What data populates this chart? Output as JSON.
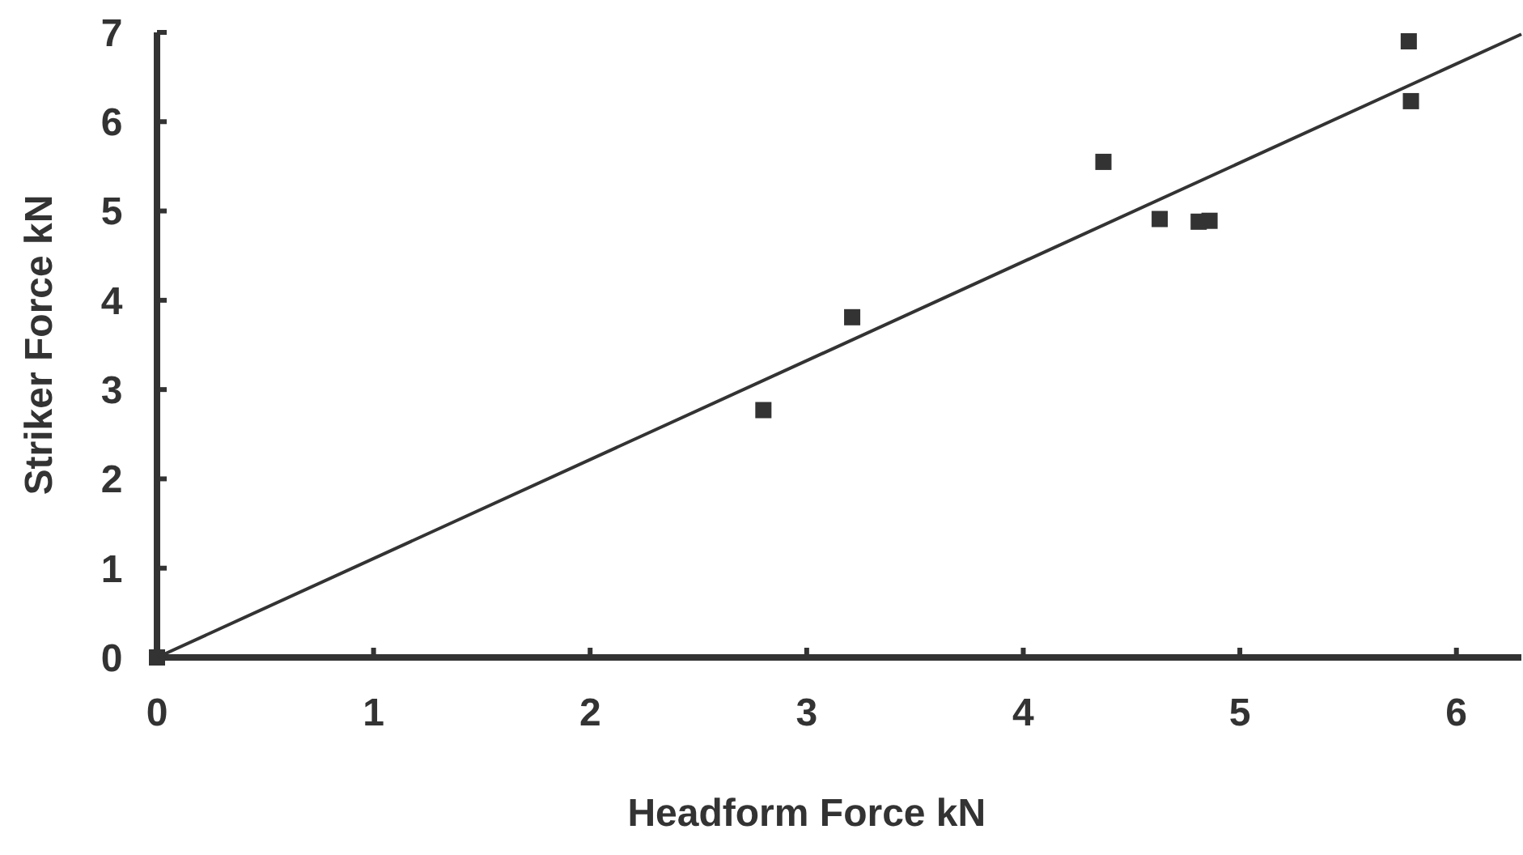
{
  "chart_data": {
    "type": "scatter",
    "xlabel": "Headform Force kN",
    "ylabel": "Striker Force kN",
    "xlim": [
      0,
      6.3
    ],
    "ylim": [
      0,
      7
    ],
    "xticks": [
      0,
      1,
      2,
      3,
      4,
      5,
      6
    ],
    "yticks": [
      0,
      1,
      2,
      3,
      4,
      5,
      6,
      7
    ],
    "grid": false,
    "series": [
      {
        "color": "#333333",
        "marker": "square",
        "x": [
          0,
          2.8,
          3.21,
          4.37,
          4.63,
          4.81,
          4.86,
          5.78,
          5.79
        ],
        "values": [
          0,
          2.77,
          3.81,
          5.55,
          4.91,
          4.88,
          4.89,
          6.9,
          6.23
        ]
      },
      {
        "type": "line",
        "color": "#333333",
        "marker": "none",
        "line_style": "solid",
        "x": [
          0,
          6.3
        ],
        "values": [
          0,
          6.98
        ]
      }
    ]
  }
}
